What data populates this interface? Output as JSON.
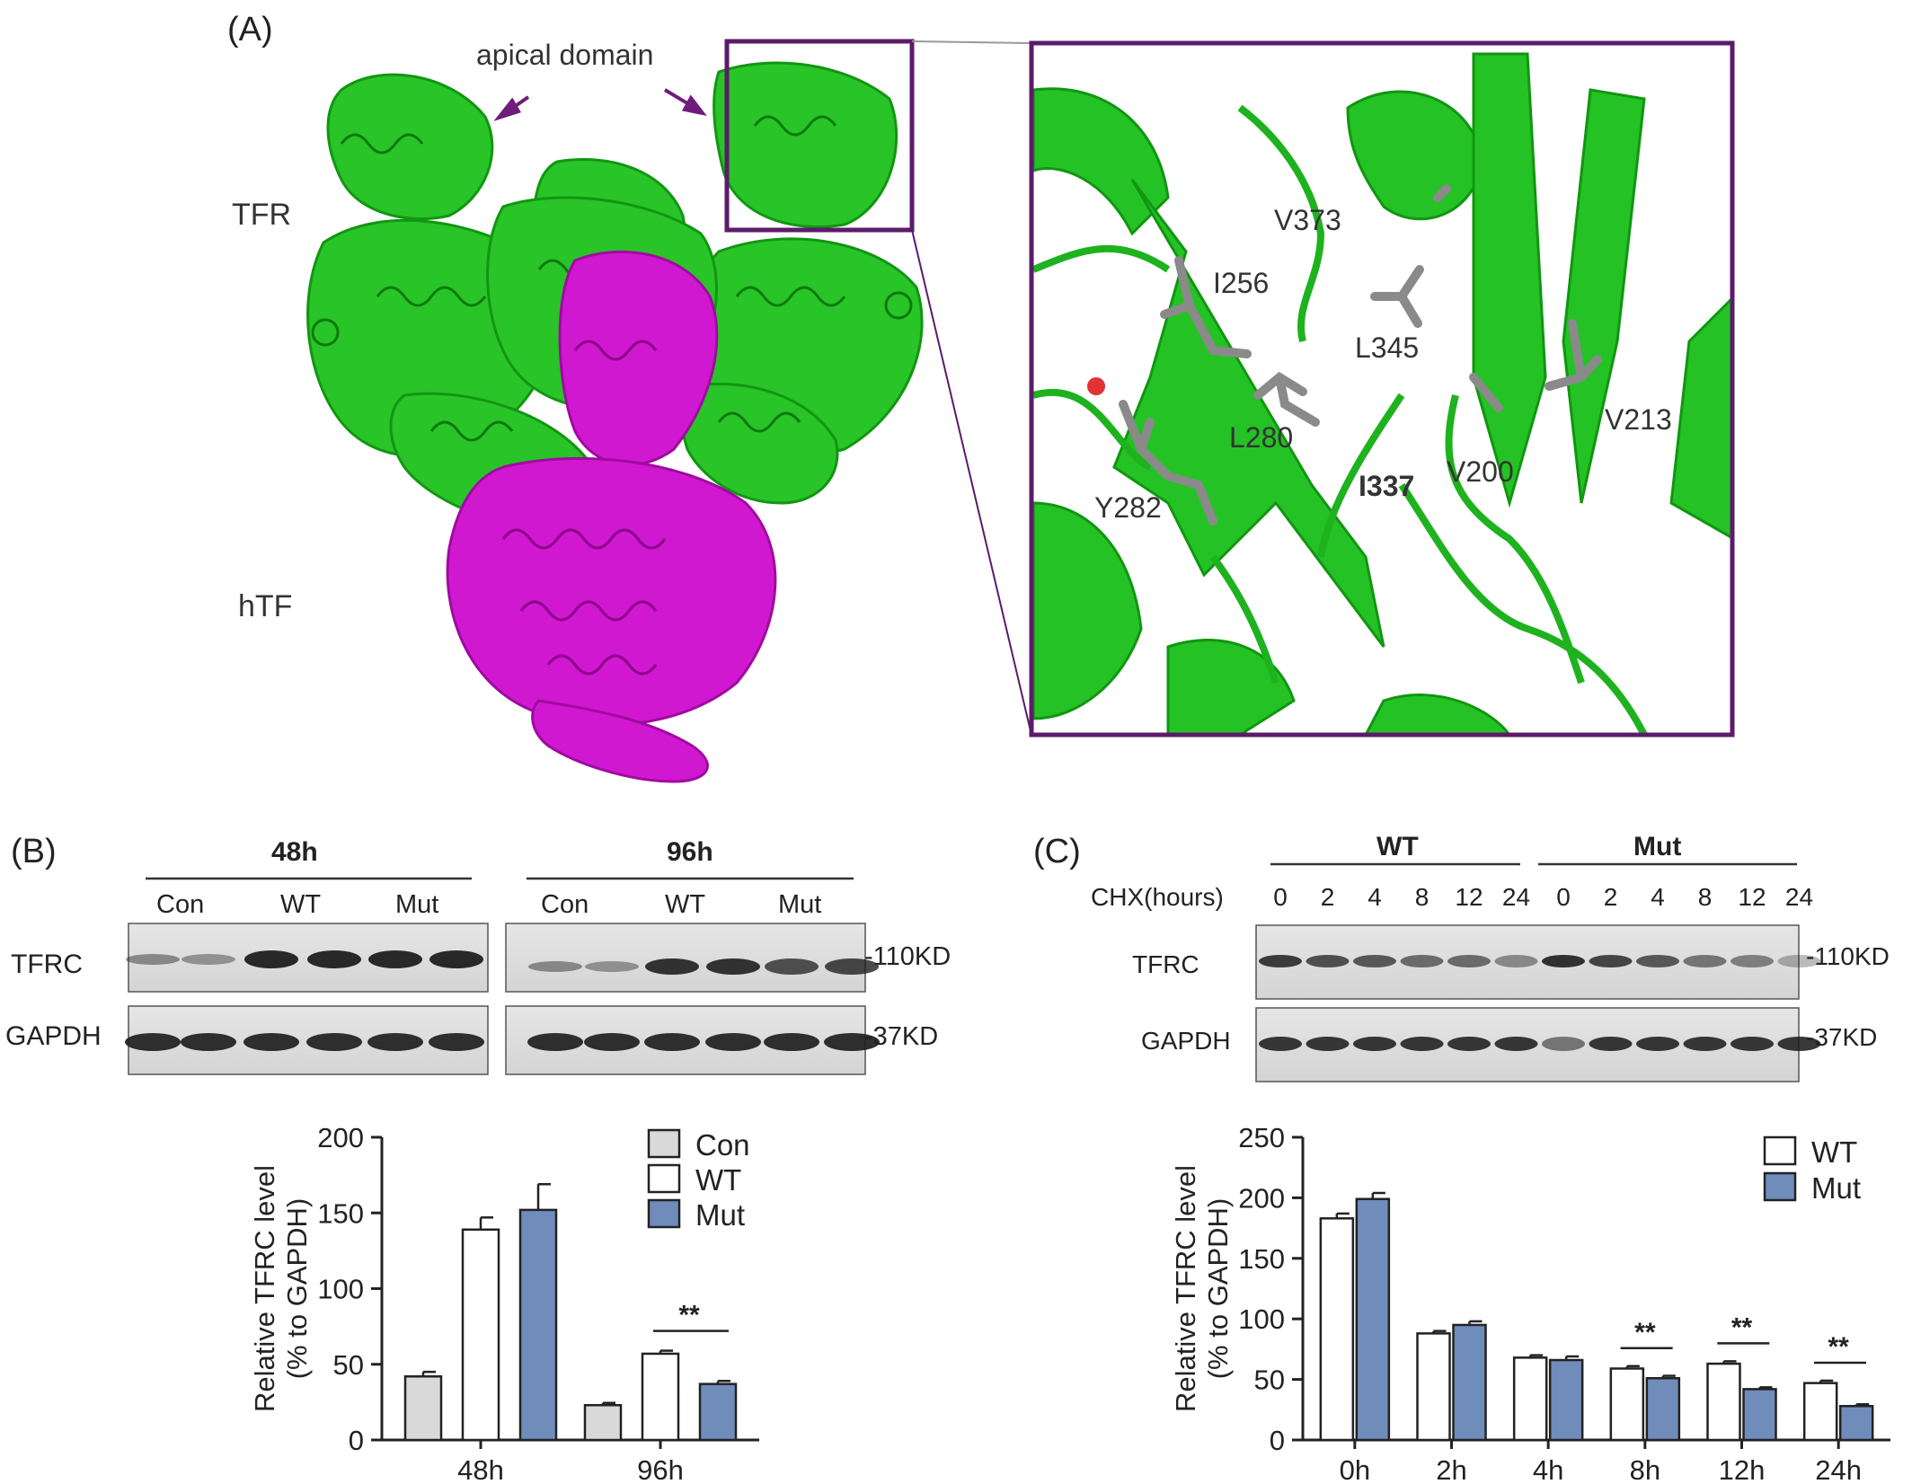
{
  "panelA": {
    "label": "(A)",
    "apical_label": "apical domain",
    "tfr_label": "TFR",
    "htf_label": "hTF",
    "residues": [
      {
        "name": "V373",
        "bold": false
      },
      {
        "name": "I256",
        "bold": false
      },
      {
        "name": "L345",
        "bold": false
      },
      {
        "name": "L280",
        "bold": false
      },
      {
        "name": "V213",
        "bold": false
      },
      {
        "name": "V200",
        "bold": false
      },
      {
        "name": "I337",
        "bold": true
      },
      {
        "name": "Y282",
        "bold": false
      }
    ],
    "colors": {
      "tfr": "#1fc21f",
      "htf": "#cc14cc",
      "box": "#5c1a6b",
      "sidechain": "#8a8a8a"
    }
  },
  "panelB": {
    "label": "(B)",
    "time_groups": [
      "48h",
      "96h"
    ],
    "lane_groups": [
      "Con",
      "WT",
      "Mut"
    ],
    "row_labels": [
      "TFRC",
      "GAPDH"
    ],
    "markers": [
      "-110KD",
      "-37KD"
    ],
    "sig": "**"
  },
  "panelC": {
    "label": "(C)",
    "groups": [
      "WT",
      "Mut"
    ],
    "chx_label": "CHX(hours)",
    "chx_times": [
      "0",
      "2",
      "4",
      "8",
      "12",
      "24",
      "0",
      "2",
      "4",
      "8",
      "12",
      "24"
    ],
    "row_labels": [
      "TFRC",
      "GAPDH"
    ],
    "markers": [
      "-110KD",
      "-37KD"
    ],
    "sig": "**"
  },
  "chart_data": [
    {
      "type": "bar",
      "title": "",
      "xlabel": "",
      "ylabel": "Relative TFRC level (% to GAPDH)",
      "ylim": [
        0,
        200
      ],
      "yticks": [
        "0",
        "50",
        "100",
        "150",
        "200"
      ],
      "categories": [
        "48h",
        "96h"
      ],
      "series": [
        {
          "name": "Con",
          "color": "#d9d9d9",
          "values": [
            42,
            23
          ],
          "errors": [
            3,
            1.5
          ]
        },
        {
          "name": "WT",
          "color": "#ffffff",
          "values": [
            139,
            57
          ],
          "errors": [
            8,
            2
          ]
        },
        {
          "name": "Mut",
          "color": "#6f8cbb",
          "values": [
            152,
            37
          ],
          "errors": [
            17,
            2
          ]
        }
      ],
      "legend": "top-right",
      "significance": [
        {
          "category": "96h",
          "label": "**"
        }
      ]
    },
    {
      "type": "bar",
      "title": "",
      "xlabel": "",
      "ylabel": "Relative TFRC level (% to GAPDH)",
      "ylim": [
        0,
        250
      ],
      "yticks": [
        "0",
        "50",
        "100",
        "150",
        "200",
        "250"
      ],
      "categories": [
        "0h",
        "2h",
        "4h",
        "8h",
        "12h",
        "24h"
      ],
      "series": [
        {
          "name": "WT",
          "color": "#ffffff",
          "values": [
            183,
            88,
            68,
            59,
            63,
            47
          ],
          "errors": [
            4,
            2,
            2,
            2,
            2,
            2
          ]
        },
        {
          "name": "Mut",
          "color": "#6f8cbb",
          "values": [
            199,
            95,
            66,
            51,
            42,
            28
          ],
          "errors": [
            5,
            3,
            3,
            2,
            1.5,
            1.5
          ]
        }
      ],
      "legend": "top-right",
      "significance": [
        {
          "category": "8h",
          "label": "**"
        },
        {
          "category": "12h",
          "label": "**"
        },
        {
          "category": "24h",
          "label": "**"
        }
      ]
    }
  ]
}
